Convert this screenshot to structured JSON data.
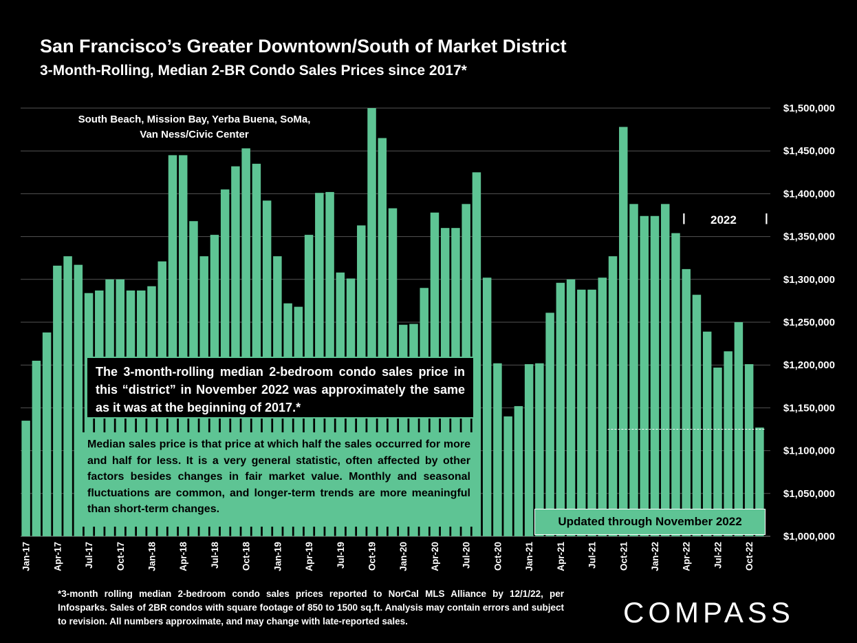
{
  "title": "San Francisco’s Greater Downtown/South of Market District",
  "subtitle": "3-Month-Rolling, Median 2-BR Condo Sales Prices since 2017*",
  "areas_note_line1": "South Beach, Mission Bay, Yerba Buena, SoMa,",
  "areas_note_line2": "Van Ness/Civic Center",
  "callout_black": "The 3-month-rolling median 2-bedroom condo sales price in this “district” in November 2022 was approximately the same as it was at the beginning of 2017.*",
  "callout_green": "Median sales price is that price at which half the sales occurred for more and half for less. It is a very general statistic, often affected by other factors besides changes in fair market value. Monthly and seasonal fluctuations are common, and longer-term trends are more meaningful than short-term changes.",
  "updated_label": "Updated through November 2022",
  "year_marker": {
    "label": "2022",
    "bar": "|"
  },
  "footnote": "*3-month rolling median 2-bedroom condo sales prices reported to NorCal MLS Alliance by 12/1/22, per Infosparks. Sales of 2BR condos with square footage of 850 to 1500 sq.ft. Analysis may contain errors and subject to revision. All numbers approximate, and may change with late-reported sales.",
  "logo_text": "COMPASS",
  "colors": {
    "bar": "#5ec494",
    "background": "#000000",
    "grid": "#555555",
    "reference_line": "#ffffff"
  },
  "chart_data": {
    "type": "bar",
    "categories": [
      "Jan-17",
      "Feb-17",
      "Mar-17",
      "Apr-17",
      "May-17",
      "Jun-17",
      "Jul-17",
      "Aug-17",
      "Sep-17",
      "Oct-17",
      "Nov-17",
      "Dec-17",
      "Jan-18",
      "Feb-18",
      "Mar-18",
      "Apr-18",
      "May-18",
      "Jun-18",
      "Jul-18",
      "Aug-18",
      "Sep-18",
      "Oct-18",
      "Nov-18",
      "Dec-18",
      "Jan-19",
      "Feb-19",
      "Mar-19",
      "Apr-19",
      "May-19",
      "Jun-19",
      "Jul-19",
      "Aug-19",
      "Sep-19",
      "Oct-19",
      "Nov-19",
      "Dec-19",
      "Jan-20",
      "Feb-20",
      "Mar-20",
      "Apr-20",
      "May-20",
      "Jun-20",
      "Jul-20",
      "Aug-20",
      "Sep-20",
      "Oct-20",
      "Nov-20",
      "Dec-20",
      "Jan-21",
      "Feb-21",
      "Mar-21",
      "Apr-21",
      "May-21",
      "Jun-21",
      "Jul-21",
      "Aug-21",
      "Sep-21",
      "Oct-21",
      "Nov-21",
      "Dec-21",
      "Jan-22",
      "Feb-22",
      "Mar-22",
      "Apr-22",
      "May-22",
      "Jun-22",
      "Jul-22",
      "Aug-22",
      "Sep-22",
      "Oct-22",
      "Nov-22"
    ],
    "x_tick_labels": [
      "Jan-17",
      "Apr-17",
      "Jul-17",
      "Oct-17",
      "Jan-18",
      "Apr-18",
      "Jul-18",
      "Oct-18",
      "Jan-19",
      "Apr-19",
      "Jul-19",
      "Oct-19",
      "Jan-20",
      "Apr-20",
      "Jul-20",
      "Oct-20",
      "Jan-21",
      "Apr-21",
      "Jul-21",
      "Oct-21",
      "Jan-22",
      "Apr-22",
      "Jul-22",
      "Oct-22"
    ],
    "values": [
      1135000,
      1205000,
      1238000,
      1316000,
      1327000,
      1317000,
      1284000,
      1287000,
      1300000,
      1300000,
      1287000,
      1287000,
      1292000,
      1321000,
      1445000,
      1445000,
      1368000,
      1327000,
      1352000,
      1405000,
      1432000,
      1453000,
      1435000,
      1392000,
      1327000,
      1272000,
      1268000,
      1352000,
      1401000,
      1402000,
      1308000,
      1301000,
      1363000,
      1500000,
      1465000,
      1383000,
      1247000,
      1248000,
      1290000,
      1378000,
      1360000,
      1360000,
      1388000,
      1425000,
      1302000,
      1202000,
      1140000,
      1152000,
      1201000,
      1202000,
      1261000,
      1296000,
      1300000,
      1288000,
      1288000,
      1302000,
      1327000,
      1478000,
      1388000,
      1374000,
      1374000,
      1388000,
      1354000,
      1312000,
      1282000,
      1239000,
      1197000,
      1216000,
      1250000,
      1201000,
      1127000
    ],
    "y_tick_labels": [
      "$1,000,000",
      "$1,050,000",
      "$1,100,000",
      "$1,150,000",
      "$1,200,000",
      "$1,250,000",
      "$1,300,000",
      "$1,350,000",
      "$1,400,000",
      "$1,450,000",
      "$1,500,000"
    ],
    "ylim": [
      1000000,
      1500000
    ],
    "y_axis_side": "right",
    "grid": true,
    "reference_line": {
      "value": 1125000,
      "style": "dashed",
      "from": "Sep-21",
      "to": "Nov-22"
    }
  }
}
